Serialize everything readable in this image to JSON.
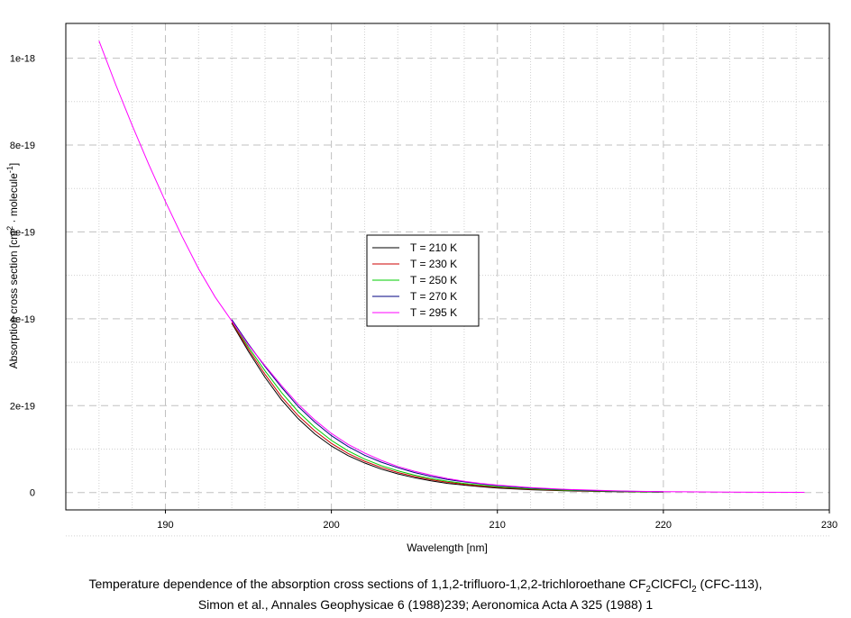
{
  "chart_data": {
    "type": "line",
    "title": "",
    "xlabel": "Wavelength [nm]",
    "ylabel_parts": {
      "pre": "Absorption cross section [cm",
      "sup1": "2",
      "mid": " · molecule",
      "sup2": "-1",
      "post": "]"
    },
    "xlim": [
      184,
      230
    ],
    "ylim": [
      -4e-20,
      1.08e-18
    ],
    "x_ticks": [
      190,
      200,
      210,
      220,
      230
    ],
    "x_tick_labels": [
      "190",
      "200",
      "210",
      "220",
      "230"
    ],
    "y_ticks": [
      0,
      2e-19,
      4e-19,
      6e-19,
      8e-19,
      1e-18
    ],
    "y_tick_labels": [
      "0",
      "2e-19",
      "4e-19",
      "6e-19",
      "8e-19",
      "1e-18"
    ],
    "grid": true,
    "legend_position": "center",
    "series": [
      {
        "name": "T = 210 K",
        "color": "#000000",
        "x": [
          194,
          195,
          196,
          197,
          198,
          199,
          200,
          201,
          202,
          203,
          204,
          205,
          206,
          207,
          208,
          209,
          210,
          212,
          214,
          216,
          218,
          220
        ],
        "y": [
          3.9e-19,
          3.25e-19,
          2.65e-19,
          2.13e-19,
          1.7e-19,
          1.35e-19,
          1.07e-19,
          8.5e-20,
          6.8e-20,
          5.4e-20,
          4.3e-20,
          3.4e-20,
          2.7e-20,
          2.1e-20,
          1.7e-20,
          1.35e-20,
          1.05e-20,
          6.5e-21,
          4e-21,
          2.5e-21,
          1.5e-21,
          1e-21
        ]
      },
      {
        "name": "T = 230 K",
        "color": "#cc0000",
        "x": [
          194,
          195,
          196,
          197,
          198,
          199,
          200,
          201,
          202,
          203,
          204,
          205,
          206,
          207,
          208,
          209,
          210,
          212,
          214,
          216,
          218,
          220
        ],
        "y": [
          3.92e-19,
          3.3e-19,
          2.72e-19,
          2.2e-19,
          1.77e-19,
          1.42e-19,
          1.13e-19,
          9e-20,
          7.2e-20,
          5.8e-20,
          4.6e-20,
          3.7e-20,
          2.95e-20,
          2.35e-20,
          1.9e-20,
          1.5e-20,
          1.2e-20,
          7.5e-21,
          4.7e-21,
          3e-21,
          1.8e-21,
          1.2e-21
        ]
      },
      {
        "name": "T = 250 K",
        "color": "#00cc00",
        "x": [
          194,
          195,
          196,
          197,
          198,
          199,
          200,
          201,
          202,
          203,
          204,
          205,
          206,
          207,
          208,
          209,
          210,
          212,
          214,
          216,
          218,
          220
        ],
        "y": [
          3.95e-19,
          3.35e-19,
          2.8e-19,
          2.3e-19,
          1.86e-19,
          1.5e-19,
          1.2e-19,
          9.6e-20,
          7.7e-20,
          6.2e-20,
          5e-20,
          4e-20,
          3.2e-20,
          2.6e-20,
          2.1e-20,
          1.7e-20,
          1.35e-20,
          8.6e-21,
          5.5e-21,
          3.5e-21,
          2.2e-21,
          1.4e-21
        ]
      },
      {
        "name": "T = 270 K",
        "color": "#000080",
        "x": [
          194,
          195,
          196,
          197,
          198,
          199,
          200,
          201,
          202,
          203,
          204,
          205,
          206,
          207,
          208,
          209,
          210,
          212,
          214,
          216,
          218,
          220
        ],
        "y": [
          3.98e-19,
          3.42e-19,
          2.9e-19,
          2.42e-19,
          1.98e-19,
          1.62e-19,
          1.31e-19,
          1.06e-19,
          8.6e-20,
          7e-20,
          5.7e-20,
          4.6e-20,
          3.7e-20,
          3e-20,
          2.45e-20,
          2e-20,
          1.6e-20,
          1.05e-20,
          6.8e-21,
          4.4e-21,
          2.8e-21,
          1.8e-21
        ]
      },
      {
        "name": "T = 295 K",
        "color": "#ff00ff",
        "x": [
          186,
          187,
          188,
          189,
          190,
          191,
          192,
          193,
          194,
          195,
          196,
          197,
          198,
          199,
          200,
          201,
          202,
          203,
          204,
          205,
          206,
          207,
          208,
          209,
          210,
          212,
          214,
          216,
          218,
          220,
          222,
          224,
          226,
          228.5
        ],
        "y": [
          1.04e-18,
          9.4e-19,
          8.45e-19,
          7.55e-19,
          6.7e-19,
          5.9e-19,
          5.15e-19,
          4.5e-19,
          3.95e-19,
          3.4e-19,
          2.92e-19,
          2.46e-19,
          2.03e-19,
          1.67e-19,
          1.36e-19,
          1.11e-19,
          9.1e-20,
          7.4e-20,
          6e-20,
          4.9e-20,
          4e-20,
          3.2e-20,
          2.6e-20,
          2.1e-20,
          1.7e-20,
          1.15e-20,
          7.5e-21,
          5e-21,
          3.2e-21,
          2.1e-21,
          1.4e-21,
          9e-22,
          6e-22,
          4e-22
        ]
      }
    ]
  },
  "caption": {
    "line1_pre": "Temperature dependence of the absorption cross sections of 1,1,2-trifluoro-1,2,2-trichloroethane CF",
    "line1_sub1": "2",
    "line1_mid": "ClCFCl",
    "line1_sub2": "2",
    "line1_post": " (CFC-113),",
    "line2": "Simon et al., Annales Geophysicae 6 (1988)239;  Aeronomica Acta A 325 (1988) 1"
  }
}
